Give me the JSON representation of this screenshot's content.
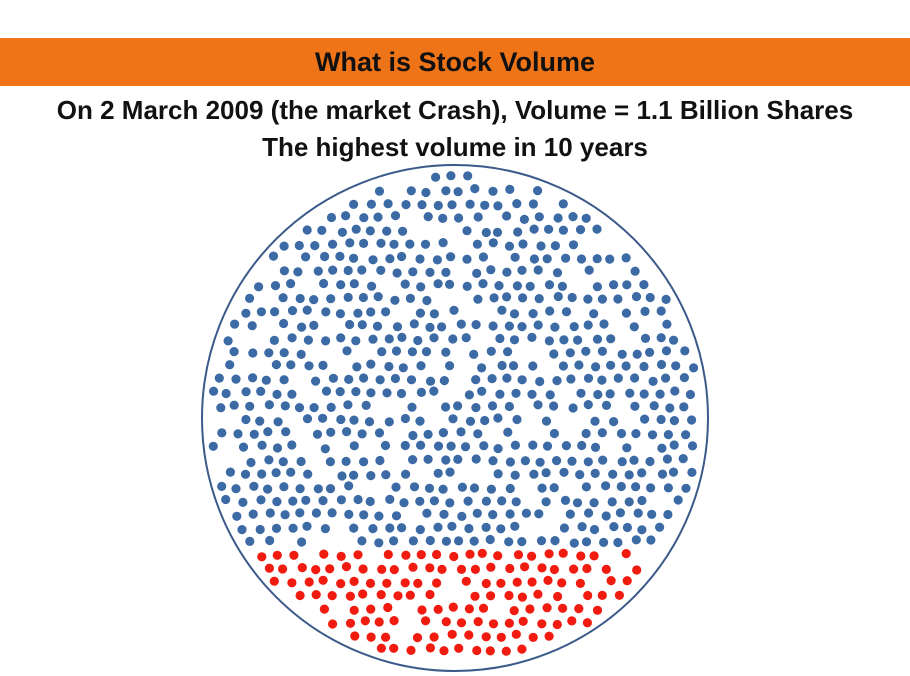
{
  "slide": {
    "title": "What is Stock Volume",
    "line1": "On 2 March 2009 (the market Crash), Volume = 1.1 Billion Shares",
    "line2": "The highest volume in 10 years"
  },
  "colors": {
    "header_bar": "#ee7417",
    "circle_outline": "#3b5a8a",
    "blue_dot": "#3c6aa5",
    "red_dot": "#f21b0f"
  }
}
